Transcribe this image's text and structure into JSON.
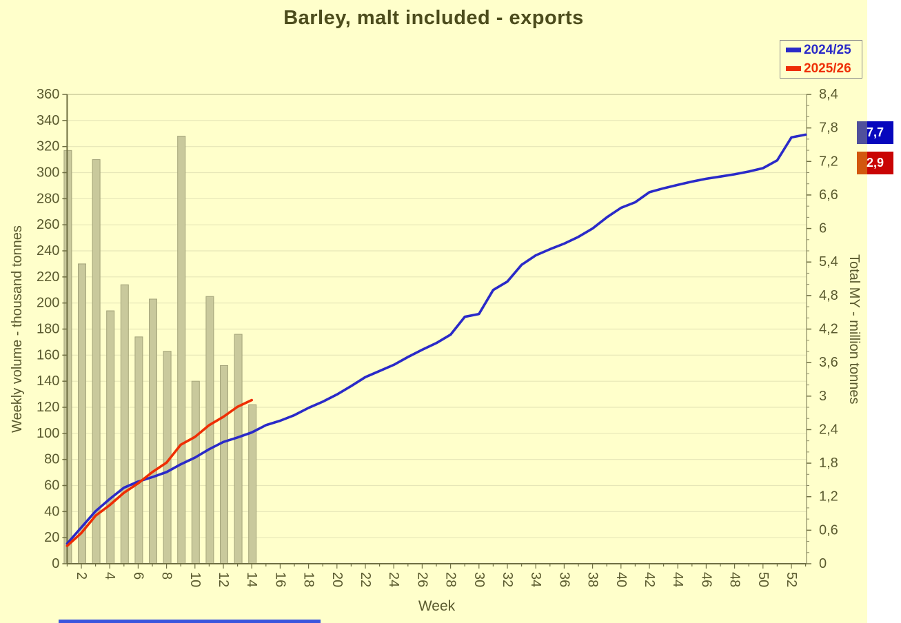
{
  "title": "Barley, malt included - exports",
  "legend": {
    "items": [
      {
        "label": "2024/25",
        "color": "#2a2ac8"
      },
      {
        "label": "2025/26",
        "color": "#ee2e04"
      }
    ]
  },
  "badges": {
    "total_2024_25": "7,7",
    "total_2025_26": "2,9"
  },
  "chart_data": {
    "type": "bar",
    "subtype": "combo: weekly bars (left axis) + cumulative lines (right axis)",
    "title": "Barley, malt included - exports",
    "grid": true,
    "legend_position": "top-right",
    "x_axis": {
      "label": "Week",
      "tick_label_step": 2,
      "first_label": 2,
      "last_label": 52,
      "total_weeks": 53
    },
    "y_left": {
      "label": "Weekly volume - thousand tonnes",
      "min": 0,
      "max": 360,
      "step": 20
    },
    "y_right": {
      "label": "Total MY - million tonnes",
      "min": 0,
      "max": 8.4,
      "step": 0.6,
      "decimal_separator": ","
    },
    "bars": {
      "name": "Weekly volume 2025/26",
      "axis": "left",
      "color": "#c9c99c",
      "border_color": "#a3a379",
      "weeks": [
        1,
        2,
        3,
        4,
        5,
        6,
        7,
        8,
        9,
        10,
        11,
        12,
        13,
        14
      ],
      "values": [
        317,
        230,
        310,
        194,
        214,
        174,
        203,
        163,
        328,
        140,
        205,
        152,
        176,
        122
      ]
    },
    "series": [
      {
        "name": "2024/25",
        "axis": "right",
        "color": "#2a2ac8",
        "start_week": 1,
        "values": [
          0.36,
          0.65,
          0.94,
          1.16,
          1.36,
          1.47,
          1.55,
          1.64,
          1.78,
          1.9,
          2.05,
          2.18,
          2.26,
          2.35,
          2.48,
          2.56,
          2.66,
          2.79,
          2.9,
          3.03,
          3.18,
          3.34,
          3.45,
          3.56,
          3.7,
          3.83,
          3.95,
          4.1,
          4.42,
          4.47,
          4.9,
          5.05,
          5.35,
          5.52,
          5.63,
          5.73,
          5.85,
          6.0,
          6.2,
          6.37,
          6.47,
          6.65,
          6.72,
          6.78,
          6.84,
          6.89,
          6.93,
          6.97,
          7.02,
          7.08,
          7.22,
          7.63,
          7.68
        ]
      },
      {
        "name": "2025/26",
        "axis": "right",
        "color": "#ee2e04",
        "start_week": 1,
        "values": [
          0.32,
          0.55,
          0.86,
          1.05,
          1.27,
          1.44,
          1.64,
          1.81,
          2.13,
          2.27,
          2.48,
          2.63,
          2.81,
          2.93
        ]
      }
    ],
    "totals_my": {
      "2024/25": "7,7",
      "2025/26": "2,9"
    }
  },
  "colors": {
    "background": "#ffffcb",
    "right_margin": "#ffffff",
    "gridline": "#e6e6b8",
    "axis_line": "#6f6f42",
    "tick_text": "#5a5a2e",
    "title_text": "#4c4c1c",
    "badge_blue": "#0707bd",
    "badge_red": "#c90404",
    "bottom_strip": "#3a57dd"
  }
}
